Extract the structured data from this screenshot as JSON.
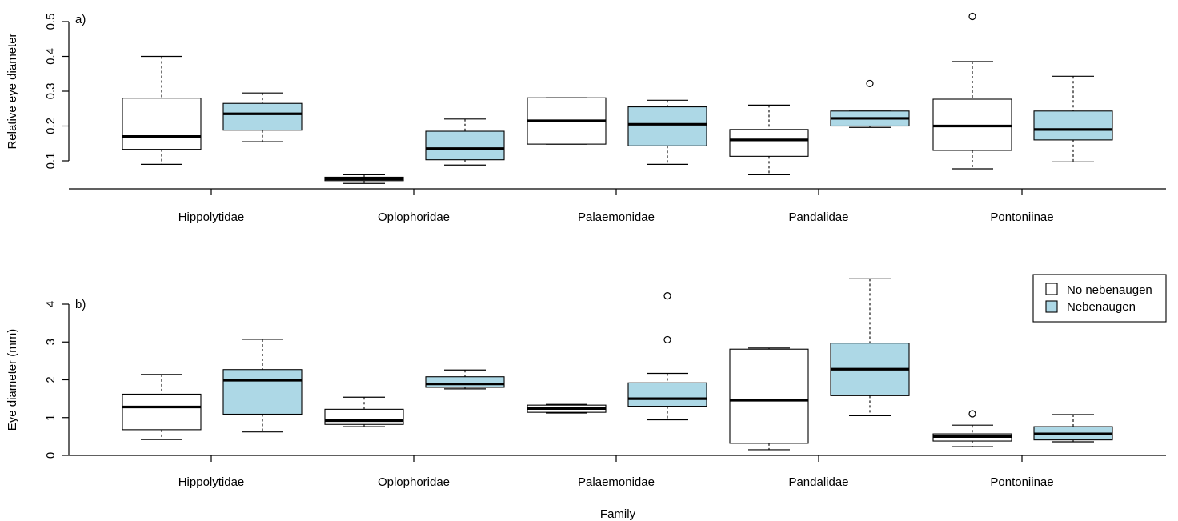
{
  "chart_data": [
    {
      "type": "box",
      "panel_label": "a)",
      "ylabel": "Relative eye diameter",
      "yticks": [
        0.1,
        0.2,
        0.3,
        0.4,
        0.5
      ],
      "ylim": [
        0.03,
        0.52
      ],
      "categories": [
        "Hippolytidae",
        "Oplophoridae",
        "Palaemonidae",
        "Pandalidae",
        "Pontoniinae"
      ],
      "series": [
        {
          "name": "No nebenaugen",
          "color": "#ffffff",
          "boxes": [
            {
              "min": 0.09,
              "q1": 0.133,
              "median": 0.17,
              "q3": 0.28,
              "max": 0.4,
              "outliers": []
            },
            {
              "min": 0.035,
              "q1": 0.043,
              "median": 0.048,
              "q3": 0.053,
              "max": 0.06,
              "outliers": []
            },
            {
              "min": 0.148,
              "q1": 0.148,
              "median": 0.215,
              "q3": 0.281,
              "max": 0.281,
              "outliers": []
            },
            {
              "min": 0.06,
              "q1": 0.113,
              "median": 0.16,
              "q3": 0.19,
              "max": 0.26,
              "outliers": []
            },
            {
              "min": 0.077,
              "q1": 0.13,
              "median": 0.2,
              "q3": 0.277,
              "max": 0.385,
              "outliers": [
                0.515
              ]
            }
          ]
        },
        {
          "name": "Nebenaugen",
          "color": "#add8e6",
          "boxes": [
            {
              "min": 0.155,
              "q1": 0.188,
              "median": 0.235,
              "q3": 0.265,
              "max": 0.295,
              "outliers": []
            },
            {
              "min": 0.088,
              "q1": 0.103,
              "median": 0.135,
              "q3": 0.185,
              "max": 0.22,
              "outliers": []
            },
            {
              "min": 0.09,
              "q1": 0.143,
              "median": 0.205,
              "q3": 0.255,
              "max": 0.274,
              "outliers": []
            },
            {
              "min": 0.196,
              "q1": 0.2,
              "median": 0.222,
              "q3": 0.243,
              "max": 0.243,
              "outliers": [
                0.322
              ]
            },
            {
              "min": 0.097,
              "q1": 0.16,
              "median": 0.19,
              "q3": 0.243,
              "max": 0.343,
              "outliers": []
            }
          ]
        }
      ]
    },
    {
      "type": "box",
      "panel_label": "b)",
      "xlabel": "Family",
      "ylabel": "Eye diameter (mm)",
      "yticks": [
        0,
        1,
        2,
        3,
        4
      ],
      "ylim": [
        0,
        4.8
      ],
      "categories": [
        "Hippolytidae",
        "Oplophoridae",
        "Palaemonidae",
        "Pandalidae",
        "Pontoniinae"
      ],
      "legend_position": "top-right",
      "series": [
        {
          "name": "No nebenaugen",
          "color": "#ffffff",
          "boxes": [
            {
              "min": 0.42,
              "q1": 0.68,
              "median": 1.28,
              "q3": 1.62,
              "max": 2.14,
              "outliers": []
            },
            {
              "min": 0.76,
              "q1": 0.82,
              "median": 0.92,
              "q3": 1.22,
              "max": 1.54,
              "outliers": []
            },
            {
              "min": 1.12,
              "q1": 1.14,
              "median": 1.24,
              "q3": 1.33,
              "max": 1.35,
              "outliers": []
            },
            {
              "min": 0.15,
              "q1": 0.32,
              "median": 1.46,
              "q3": 2.81,
              "max": 2.84,
              "outliers": []
            },
            {
              "min": 0.23,
              "q1": 0.38,
              "median": 0.5,
              "q3": 0.57,
              "max": 0.8,
              "outliers": [
                1.1
              ]
            }
          ]
        },
        {
          "name": "Nebenaugen",
          "color": "#add8e6",
          "boxes": [
            {
              "min": 0.62,
              "q1": 1.09,
              "median": 1.99,
              "q3": 2.27,
              "max": 3.07,
              "outliers": []
            },
            {
              "min": 1.76,
              "q1": 1.8,
              "median": 1.89,
              "q3": 2.08,
              "max": 2.26,
              "outliers": []
            },
            {
              "min": 0.94,
              "q1": 1.3,
              "median": 1.5,
              "q3": 1.92,
              "max": 2.17,
              "outliers": [
                3.06,
                4.22
              ]
            },
            {
              "min": 1.05,
              "q1": 1.58,
              "median": 2.28,
              "q3": 2.97,
              "max": 4.67,
              "outliers": []
            },
            {
              "min": 0.36,
              "q1": 0.41,
              "median": 0.57,
              "q3": 0.76,
              "max": 1.08,
              "outliers": []
            }
          ]
        }
      ]
    }
  ]
}
